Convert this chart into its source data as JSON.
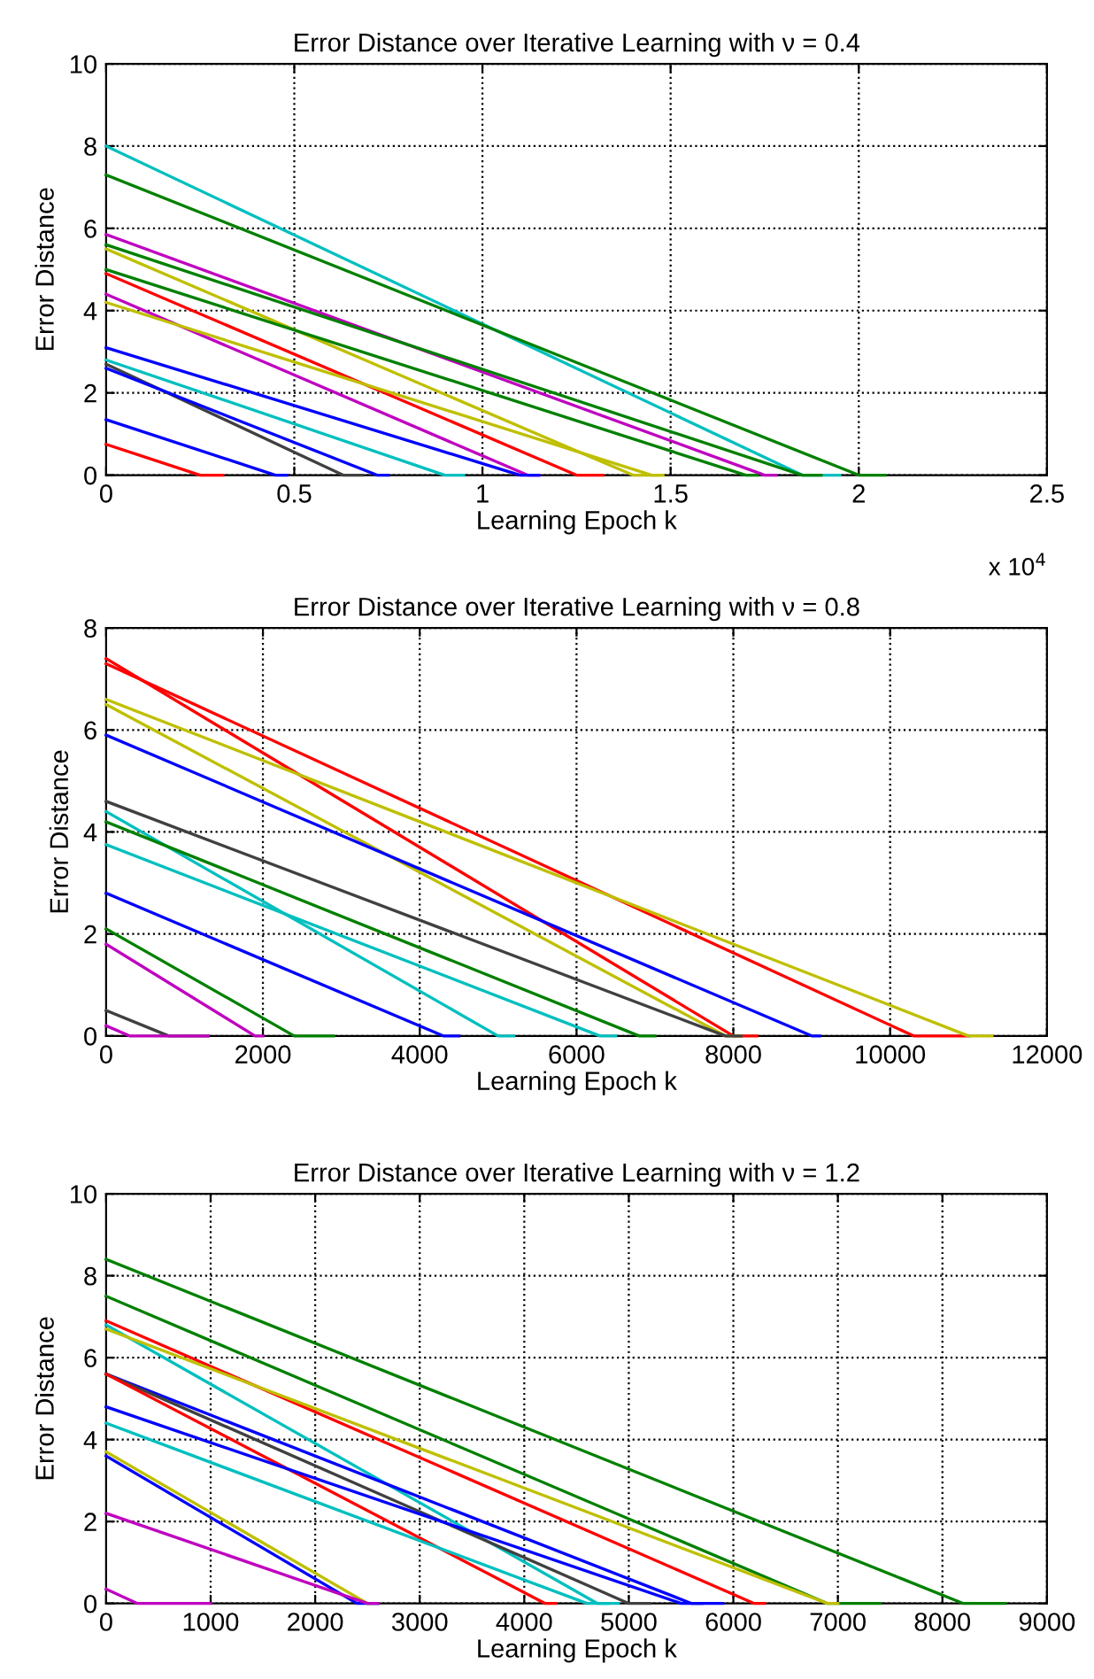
{
  "chart_data": [
    {
      "type": "line",
      "title": "Error Distance over Iterative Learning with ν = 0.4",
      "xlabel": "Learning Epoch k",
      "ylabel": "Error Distance",
      "xlim": [
        0,
        2.5
      ],
      "xticks": [
        0,
        0.5,
        1,
        1.5,
        2,
        2.5
      ],
      "ylim": [
        0,
        10
      ],
      "yticks": [
        0,
        2,
        4,
        6,
        8,
        10
      ],
      "grid": true,
      "line_style": "solid",
      "marker": "none",
      "annotations": [
        "x 10$^{4}$"
      ],
      "series": [
        {
          "color": "#00bfbf",
          "x": [
            0,
            1.85,
            1.95
          ],
          "values": [
            8,
            0,
            0
          ]
        },
        {
          "color": "#008000",
          "x": [
            0,
            2.0,
            2.07
          ],
          "values": [
            7.3,
            0,
            0
          ]
        },
        {
          "color": "#bf00bf",
          "x": [
            0,
            1.75,
            1.78
          ],
          "values": [
            5.85,
            0,
            0
          ]
        },
        {
          "color": "#008000",
          "x": [
            0,
            1.85,
            1.9
          ],
          "values": [
            5.6,
            0,
            0
          ]
        },
        {
          "color": "#bfbf00",
          "x": [
            0,
            1.4,
            1.47
          ],
          "values": [
            5.5,
            0,
            0
          ]
        },
        {
          "color": "#008000",
          "x": [
            0,
            1.7,
            1.73
          ],
          "values": [
            5.0,
            0,
            0
          ]
        },
        {
          "color": "#ff0000",
          "x": [
            0,
            1.25,
            1.32
          ],
          "values": [
            4.9,
            0,
            0
          ]
        },
        {
          "color": "#bf00bf",
          "x": [
            0,
            1.12,
            1.15
          ],
          "values": [
            4.4,
            0,
            0
          ]
        },
        {
          "color": "#bfbf00",
          "x": [
            0,
            1.45,
            1.48
          ],
          "values": [
            4.2,
            0,
            0
          ]
        },
        {
          "color": "#0000ff",
          "x": [
            0,
            1.1,
            1.15
          ],
          "values": [
            3.1,
            0,
            0
          ]
        },
        {
          "color": "#00bfbf",
          "x": [
            0,
            0.9,
            0.95
          ],
          "values": [
            2.8,
            0,
            0
          ]
        },
        {
          "color": "#404040",
          "x": [
            0,
            0.63,
            0.68
          ],
          "values": [
            2.7,
            0,
            0
          ]
        },
        {
          "color": "#0000ff",
          "x": [
            0,
            0.72,
            0.75
          ],
          "values": [
            2.6,
            0,
            0
          ]
        },
        {
          "color": "#0000ff",
          "x": [
            0,
            0.45,
            0.48
          ],
          "values": [
            1.35,
            0,
            0
          ]
        },
        {
          "color": "#ff0000",
          "x": [
            0,
            0.25,
            0.31
          ],
          "values": [
            0.75,
            0,
            0
          ]
        }
      ]
    },
    {
      "type": "line",
      "title": "Error Distance over Iterative Learning with ν = 0.8",
      "xlabel": "Learning Epoch k",
      "ylabel": "Error Distance",
      "xlim": [
        0,
        12000
      ],
      "xticks": [
        0,
        2000,
        4000,
        6000,
        8000,
        10000,
        12000
      ],
      "ylim": [
        0,
        8
      ],
      "yticks": [
        0,
        2,
        4,
        6,
        8
      ],
      "grid": true,
      "line_style": "solid",
      "marker": "none",
      "series": [
        {
          "color": "#ff0000",
          "x": [
            0,
            8000,
            8300
          ],
          "values": [
            7.4,
            0,
            0
          ]
        },
        {
          "color": "#ff0000",
          "x": [
            0,
            10300,
            11000
          ],
          "values": [
            7.3,
            0,
            0
          ]
        },
        {
          "color": "#bfbf00",
          "x": [
            0,
            11000,
            11300
          ],
          "values": [
            6.6,
            0,
            0
          ]
        },
        {
          "color": "#bfbf00",
          "x": [
            0,
            7900,
            8100
          ],
          "values": [
            6.5,
            0,
            0
          ]
        },
        {
          "color": "#0000ff",
          "x": [
            0,
            9000,
            9100
          ],
          "values": [
            5.9,
            0,
            0
          ]
        },
        {
          "color": "#404040",
          "x": [
            0,
            7900,
            8100
          ],
          "values": [
            4.6,
            0,
            0
          ]
        },
        {
          "color": "#00bfbf",
          "x": [
            0,
            5000,
            5200
          ],
          "values": [
            4.4,
            0,
            0
          ]
        },
        {
          "color": "#008000",
          "x": [
            0,
            6800,
            7000
          ],
          "values": [
            4.2,
            0,
            0
          ]
        },
        {
          "color": "#00bfbf",
          "x": [
            0,
            6300,
            6500
          ],
          "values": [
            3.75,
            0,
            0
          ]
        },
        {
          "color": "#0000ff",
          "x": [
            0,
            4300,
            4500
          ],
          "values": [
            2.8,
            0,
            0
          ]
        },
        {
          "color": "#008000",
          "x": [
            0,
            2400,
            2900
          ],
          "values": [
            2.1,
            0,
            0
          ]
        },
        {
          "color": "#bf00bf",
          "x": [
            0,
            1900,
            2000
          ],
          "values": [
            1.8,
            0,
            0
          ]
        },
        {
          "color": "#404040",
          "x": [
            0,
            800,
            1300
          ],
          "values": [
            0.5,
            0,
            0
          ]
        },
        {
          "color": "#bf00bf",
          "x": [
            0,
            300,
            1300
          ],
          "values": [
            0.2,
            0,
            0
          ]
        }
      ]
    },
    {
      "type": "line",
      "title": "Error Distance over Iterative Learning with ν = 1.2",
      "xlabel": "Learning Epoch k",
      "ylabel": "Error Distance",
      "xlim": [
        0,
        9000
      ],
      "xticks": [
        0,
        1000,
        2000,
        3000,
        4000,
        5000,
        6000,
        7000,
        8000,
        9000
      ],
      "ylim": [
        0,
        10
      ],
      "yticks": [
        0,
        2,
        4,
        6,
        8,
        10
      ],
      "grid": true,
      "line_style": "solid",
      "marker": "none",
      "series": [
        {
          "color": "#008000",
          "x": [
            0,
            8200,
            8600
          ],
          "values": [
            8.4,
            0,
            0
          ]
        },
        {
          "color": "#008000",
          "x": [
            0,
            6900,
            7400
          ],
          "values": [
            7.5,
            0,
            0
          ]
        },
        {
          "color": "#ff0000",
          "x": [
            0,
            6200,
            6300
          ],
          "values": [
            6.9,
            0,
            0
          ]
        },
        {
          "color": "#00bfbf",
          "x": [
            0,
            4700,
            4900
          ],
          "values": [
            6.8,
            0,
            0
          ]
        },
        {
          "color": "#bfbf00",
          "x": [
            0,
            6900,
            7000
          ],
          "values": [
            6.7,
            0,
            0
          ]
        },
        {
          "color": "#0000ff",
          "x": [
            0,
            5600,
            5900
          ],
          "values": [
            5.6,
            0,
            0
          ]
        },
        {
          "color": "#404040",
          "x": [
            0,
            5000,
            5200
          ],
          "values": [
            5.6,
            0,
            0
          ]
        },
        {
          "color": "#ff0000",
          "x": [
            0,
            4200,
            4300
          ],
          "values": [
            5.6,
            0,
            0
          ]
        },
        {
          "color": "#0000ff",
          "x": [
            0,
            5500,
            5700
          ],
          "values": [
            4.8,
            0,
            0
          ]
        },
        {
          "color": "#00bfbf",
          "x": [
            0,
            4600,
            4800
          ],
          "values": [
            4.4,
            0,
            0
          ]
        },
        {
          "color": "#bfbf00",
          "x": [
            0,
            2500,
            2600
          ],
          "values": [
            3.7,
            0,
            0
          ]
        },
        {
          "color": "#0000ff",
          "x": [
            0,
            2400,
            2600
          ],
          "values": [
            3.6,
            0,
            0
          ]
        },
        {
          "color": "#bf00bf",
          "x": [
            0,
            2500,
            2600
          ],
          "values": [
            2.2,
            0,
            0
          ]
        },
        {
          "color": "#bf00bf",
          "x": [
            0,
            300,
            1000
          ],
          "values": [
            0.35,
            0,
            0
          ]
        }
      ]
    }
  ]
}
